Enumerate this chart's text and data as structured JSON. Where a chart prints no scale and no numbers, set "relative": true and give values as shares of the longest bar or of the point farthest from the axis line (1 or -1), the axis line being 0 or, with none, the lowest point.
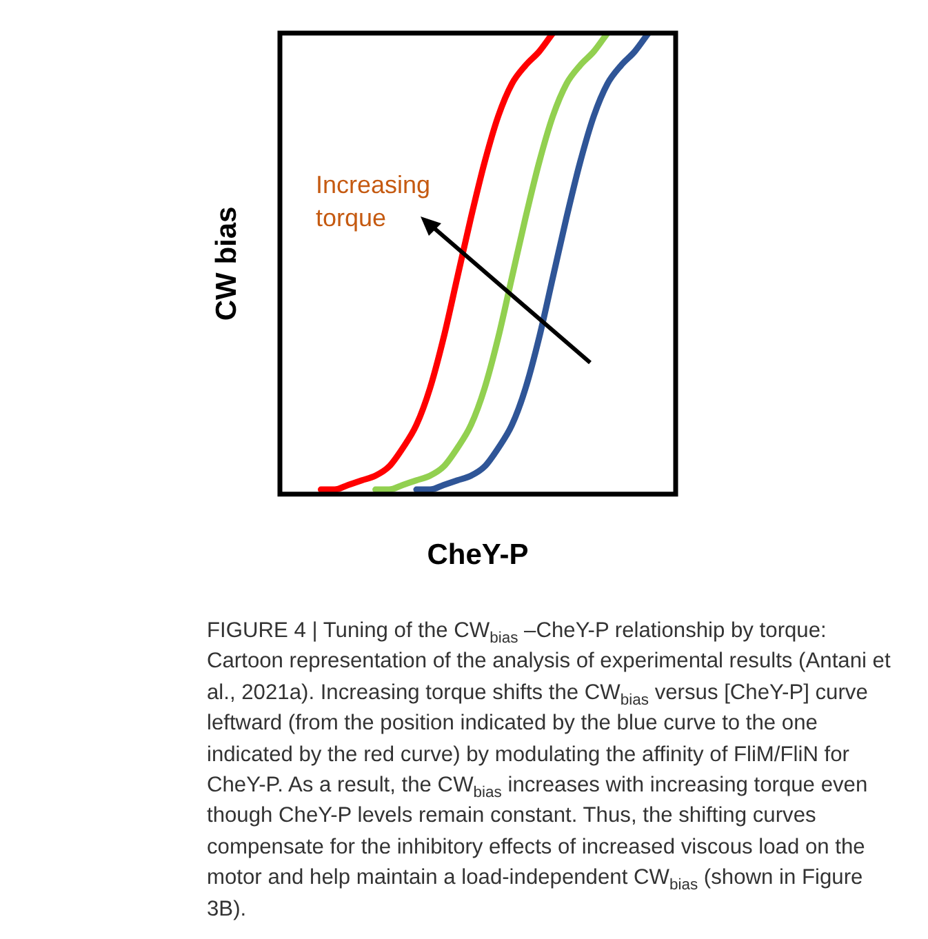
{
  "chart_data": {
    "type": "line",
    "relative": true,
    "xlabel": "CheY-P",
    "ylabel": "CW bias",
    "categories": [
      null,
      null,
      null,
      null,
      null,
      null,
      null,
      null,
      null,
      null,
      null,
      null,
      null,
      null,
      null,
      null,
      null,
      null,
      null,
      null,
      null,
      null,
      null,
      null,
      null,
      null,
      null,
      null,
      null,
      null
    ],
    "series": [
      {
        "color": "#ff0000",
        "values": [
          null,
          null,
          null,
          0.01,
          0.01,
          0.02,
          0.03,
          0.04,
          0.06,
          0.1,
          0.15,
          0.23,
          0.34,
          0.47,
          0.6,
          0.72,
          0.82,
          0.89,
          0.93,
          0.96,
          1,
          null,
          null,
          null,
          null,
          null,
          null,
          null,
          null,
          null
        ]
      },
      {
        "color": "#92d050",
        "values": [
          null,
          null,
          null,
          null,
          null,
          null,
          null,
          0.01,
          0.01,
          0.02,
          0.03,
          0.04,
          0.06,
          0.1,
          0.15,
          0.23,
          0.34,
          0.47,
          0.6,
          0.72,
          0.82,
          0.89,
          0.93,
          0.96,
          1,
          null,
          null,
          null,
          null,
          null
        ]
      },
      {
        "color": "#2f5597",
        "values": [
          null,
          null,
          null,
          null,
          null,
          null,
          null,
          null,
          null,
          null,
          0.01,
          0.01,
          0.02,
          0.03,
          0.04,
          0.06,
          0.1,
          0.15,
          0.23,
          0.34,
          0.47,
          0.6,
          0.72,
          0.82,
          0.89,
          0.93,
          0.96,
          1,
          null,
          null
        ]
      }
    ],
    "annotations": [
      "Increasing torque",
      "FIGURE 4 | Tuning of the CW$_{bias}$ –CheY-P relationship by torque: Cartoon representation of the analysis of experimental results (Antani et al., 2021a). Increasing torque shifts the CW$_{bias}$ versus [CheY-P] curve leftward (from the position indicated by the blue curve to the one indicated by the red curve) by modulating the affinity of FliM/FliN for CheY-P. As a result, the CW$_{bias}$ increases with increasing torque even though CheY-P levels remain constant. Thus, the shifting curves compensate for the inhibitory effects of increased viscous load on the motor and help maintain a load-independent CW$_{bias}$ (shown in Figure 3B)."
    ],
    "legend": false,
    "grid": false,
    "marker": "none",
    "line_style": "solid"
  }
}
